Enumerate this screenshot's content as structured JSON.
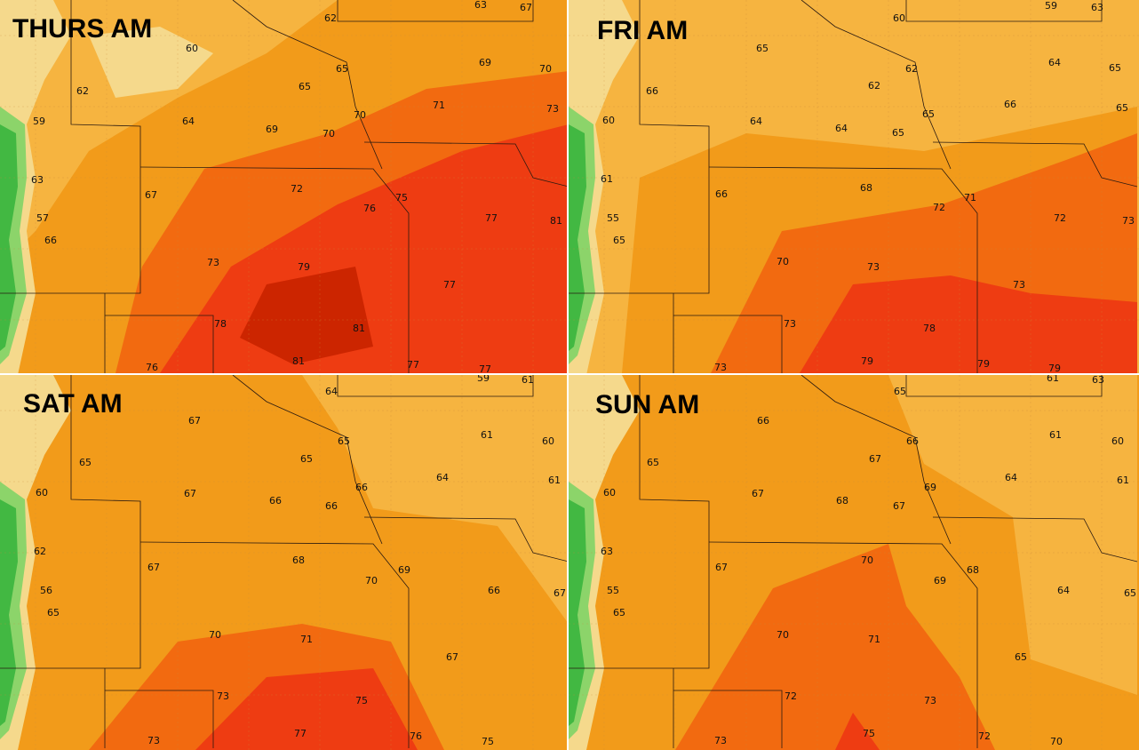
{
  "panels": [
    {
      "title": "THURS AM",
      "labels": [
        63,
        67,
        62,
        60,
        65,
        69,
        70,
        62,
        65,
        71,
        73,
        59,
        64,
        70,
        69,
        70,
        63,
        67,
        72,
        75,
        76,
        77,
        81,
        57,
        66,
        73,
        79,
        77,
        78,
        81,
        76,
        81,
        77,
        77
      ]
    },
    {
      "title": "FRI AM",
      "labels": [
        60,
        59,
        63,
        65,
        62,
        64,
        65,
        66,
        62,
        66,
        65,
        60,
        64,
        65,
        64,
        65,
        61,
        66,
        68,
        71,
        72,
        72,
        73,
        55,
        65,
        70,
        73,
        73,
        73,
        78,
        73,
        79,
        79,
        79
      ]
    },
    {
      "title": "SAT AM",
      "labels": [
        64,
        59,
        61,
        67,
        65,
        61,
        60,
        65,
        65,
        64,
        61,
        60,
        67,
        66,
        66,
        66,
        62,
        67,
        68,
        69,
        70,
        66,
        67,
        56,
        65,
        70,
        71,
        67,
        73,
        75,
        73,
        77,
        76,
        75
      ]
    },
    {
      "title": "SUN AM",
      "labels": [
        65,
        61,
        63,
        66,
        66,
        61,
        60,
        65,
        67,
        64,
        61,
        60,
        67,
        69,
        68,
        67,
        63,
        67,
        70,
        68,
        69,
        64,
        65,
        55,
        65,
        70,
        71,
        65,
        72,
        73,
        73,
        75,
        72,
        70
      ]
    }
  ]
}
